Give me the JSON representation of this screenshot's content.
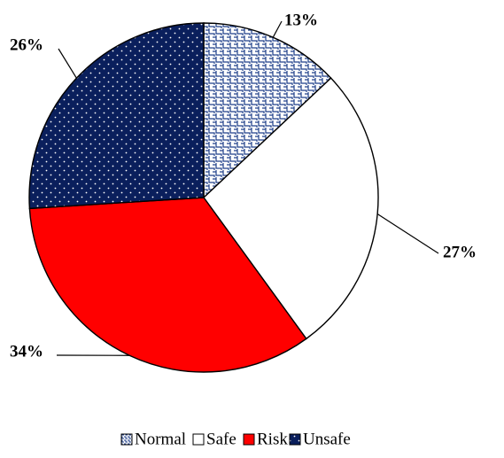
{
  "chart_data": {
    "type": "pie",
    "title": "",
    "slices": [
      {
        "label": "Normal",
        "value": 13,
        "display": "13%",
        "color": "#1f3f8a",
        "pattern": "weave-hatch"
      },
      {
        "label": "Safe",
        "value": 27,
        "display": "27%",
        "color": "#ffffff",
        "pattern": "none"
      },
      {
        "label": "Risk",
        "value": 34,
        "display": "34%",
        "color": "#ff0000",
        "pattern": "none"
      },
      {
        "label": "Unsafe",
        "value": 26,
        "display": "26%",
        "color": "#0a1f5c",
        "pattern": "white-dots"
      }
    ],
    "start_angle": "12 o'clock",
    "direction": "clockwise",
    "data_labels": "outside with leader lines",
    "legend_position": "bottom"
  }
}
